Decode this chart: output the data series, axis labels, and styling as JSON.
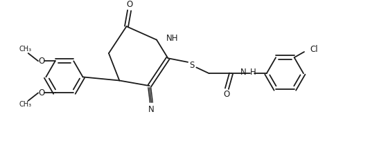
{
  "background_color": "#ffffff",
  "line_color": "#1a1a1a",
  "line_width": 1.3,
  "font_size": 8.5,
  "figsize": [
    5.34,
    2.17
  ],
  "dpi": 100,
  "xlim": [
    0,
    10.2
  ],
  "ylim": [
    0,
    4.1
  ]
}
